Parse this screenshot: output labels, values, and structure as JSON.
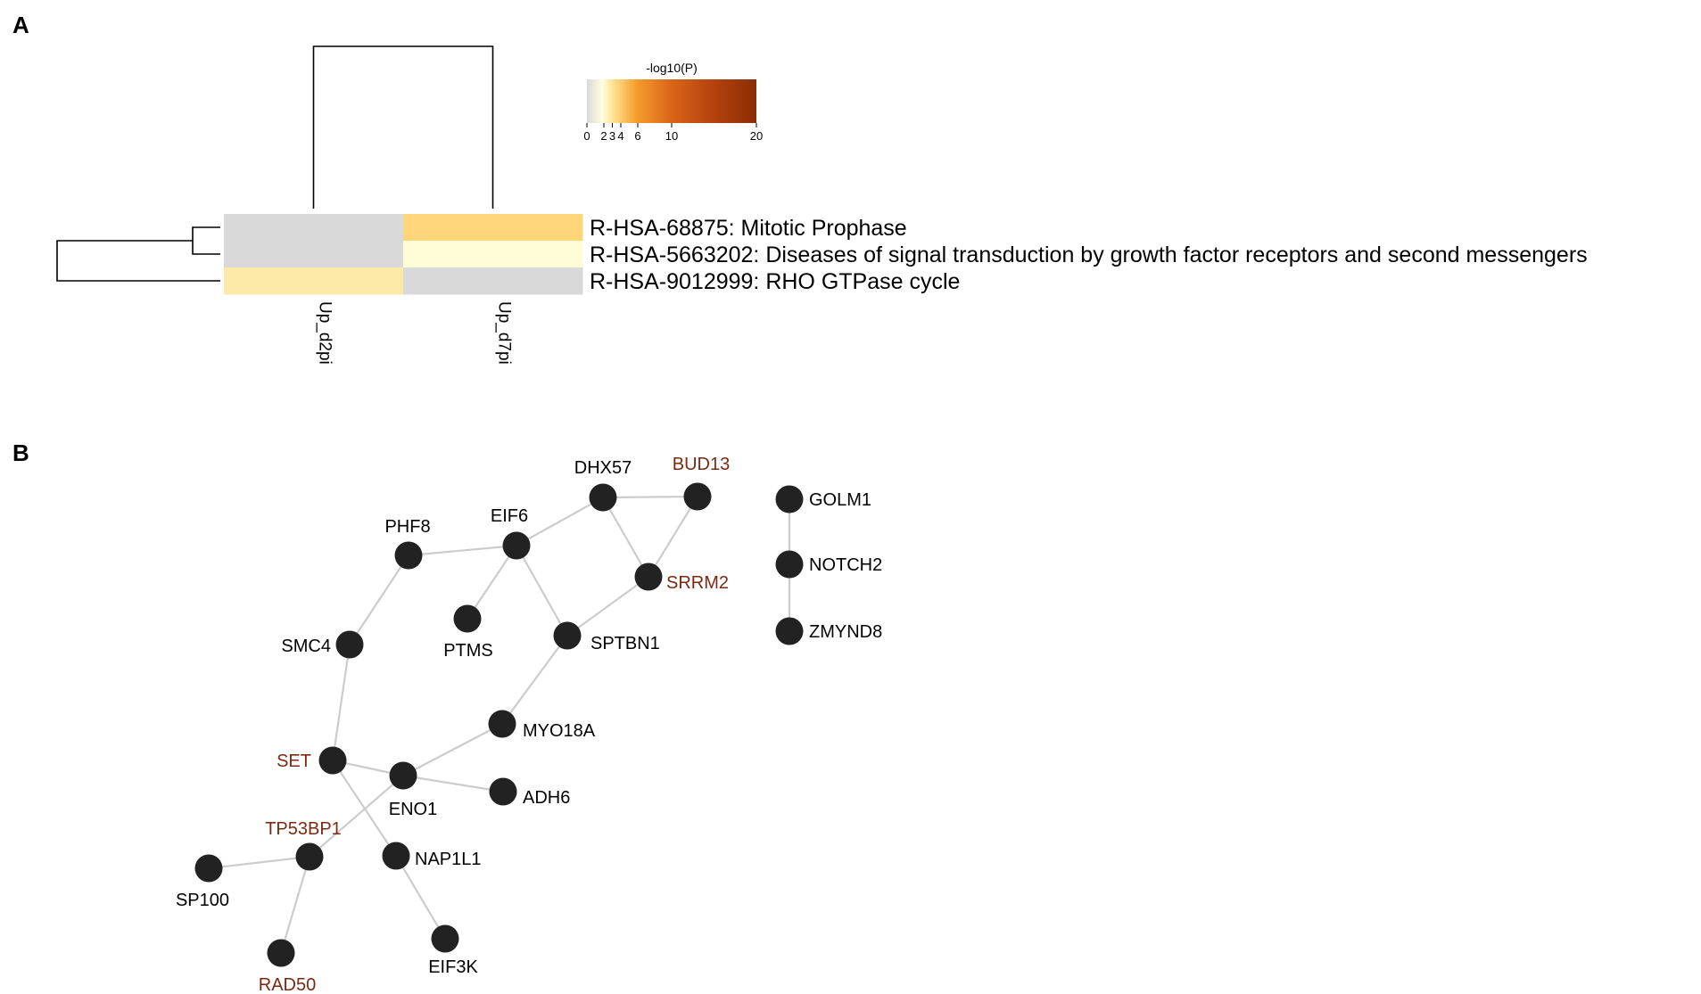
{
  "panels": {
    "a_label": "A",
    "b_label": "B"
  },
  "chart_data": [
    {
      "type": "heatmap",
      "colorbar": {
        "title": "-log10(P)",
        "ticks": [
          "0",
          "2",
          "3",
          "4",
          "6",
          "10",
          "20"
        ],
        "tick_values": [
          0,
          2,
          3,
          4,
          6,
          10,
          20
        ],
        "range": [
          0,
          20
        ],
        "colors": [
          "#d9d9d9",
          "#ffffe0",
          "#ffe08a",
          "#f59a2a",
          "#d9651a",
          "#b8450f",
          "#8b2c04"
        ]
      },
      "columns": [
        "Up_d2pi",
        "Up_d7pi"
      ],
      "rows": [
        "R-HSA-68875: Mitotic Prophase",
        "R-HSA-5663202: Diseases of signal transduction by growth factor receptors and second messengers",
        "R-HSA-9012999: RHO GTPase cycle"
      ],
      "values": [
        [
          null,
          3.5
        ],
        [
          null,
          2.2
        ],
        [
          2.8,
          null
        ]
      ],
      "cell_colors": [
        [
          "#d9d9d9",
          "#fdd57a"
        ],
        [
          "#d9d9d9",
          "#fefdd8"
        ],
        [
          "#fdeaa8",
          "#d9d9d9"
        ]
      ],
      "column_dendrogram": true,
      "row_dendrogram": true
    },
    {
      "type": "network",
      "highlight_color": "#7b2a12",
      "normal_color": "#000000",
      "node_color": "#222222",
      "edge_color": "#cccccc",
      "nodes": [
        {
          "id": "DHX57",
          "highlight": false
        },
        {
          "id": "BUD13",
          "highlight": true
        },
        {
          "id": "GOLM1",
          "highlight": false
        },
        {
          "id": "PHF8",
          "highlight": false
        },
        {
          "id": "EIF6",
          "highlight": false
        },
        {
          "id": "SRRM2",
          "highlight": true
        },
        {
          "id": "NOTCH2",
          "highlight": false
        },
        {
          "id": "PTMS",
          "highlight": false
        },
        {
          "id": "SPTBN1",
          "highlight": false
        },
        {
          "id": "ZMYND8",
          "highlight": false
        },
        {
          "id": "SMC4",
          "highlight": false
        },
        {
          "id": "MYO18A",
          "highlight": false
        },
        {
          "id": "SET",
          "highlight": true
        },
        {
          "id": "ENO1",
          "highlight": false
        },
        {
          "id": "ADH6",
          "highlight": false
        },
        {
          "id": "TP53BP1",
          "highlight": true
        },
        {
          "id": "NAP1L1",
          "highlight": false
        },
        {
          "id": "SP100",
          "highlight": false
        },
        {
          "id": "RAD50",
          "highlight": true
        },
        {
          "id": "EIF3K",
          "highlight": false
        }
      ],
      "edges": [
        [
          "DHX57",
          "BUD13"
        ],
        [
          "DHX57",
          "EIF6"
        ],
        [
          "DHX57",
          "SRRM2"
        ],
        [
          "BUD13",
          "SRRM2"
        ],
        [
          "EIF6",
          "PHF8"
        ],
        [
          "EIF6",
          "PTMS"
        ],
        [
          "EIF6",
          "SPTBN1"
        ],
        [
          "SRRM2",
          "SPTBN1"
        ],
        [
          "PHF8",
          "SMC4"
        ],
        [
          "SMC4",
          "SET"
        ],
        [
          "SPTBN1",
          "MYO18A"
        ],
        [
          "MYO18A",
          "ENO1"
        ],
        [
          "SET",
          "ENO1"
        ],
        [
          "SET",
          "NAP1L1"
        ],
        [
          "ENO1",
          "ADH6"
        ],
        [
          "ENO1",
          "TP53BP1"
        ],
        [
          "TP53BP1",
          "SP100"
        ],
        [
          "TP53BP1",
          "RAD50"
        ],
        [
          "NAP1L1",
          "EIF3K"
        ],
        [
          "GOLM1",
          "NOTCH2"
        ],
        [
          "NOTCH2",
          "ZMYND8"
        ]
      ]
    }
  ]
}
